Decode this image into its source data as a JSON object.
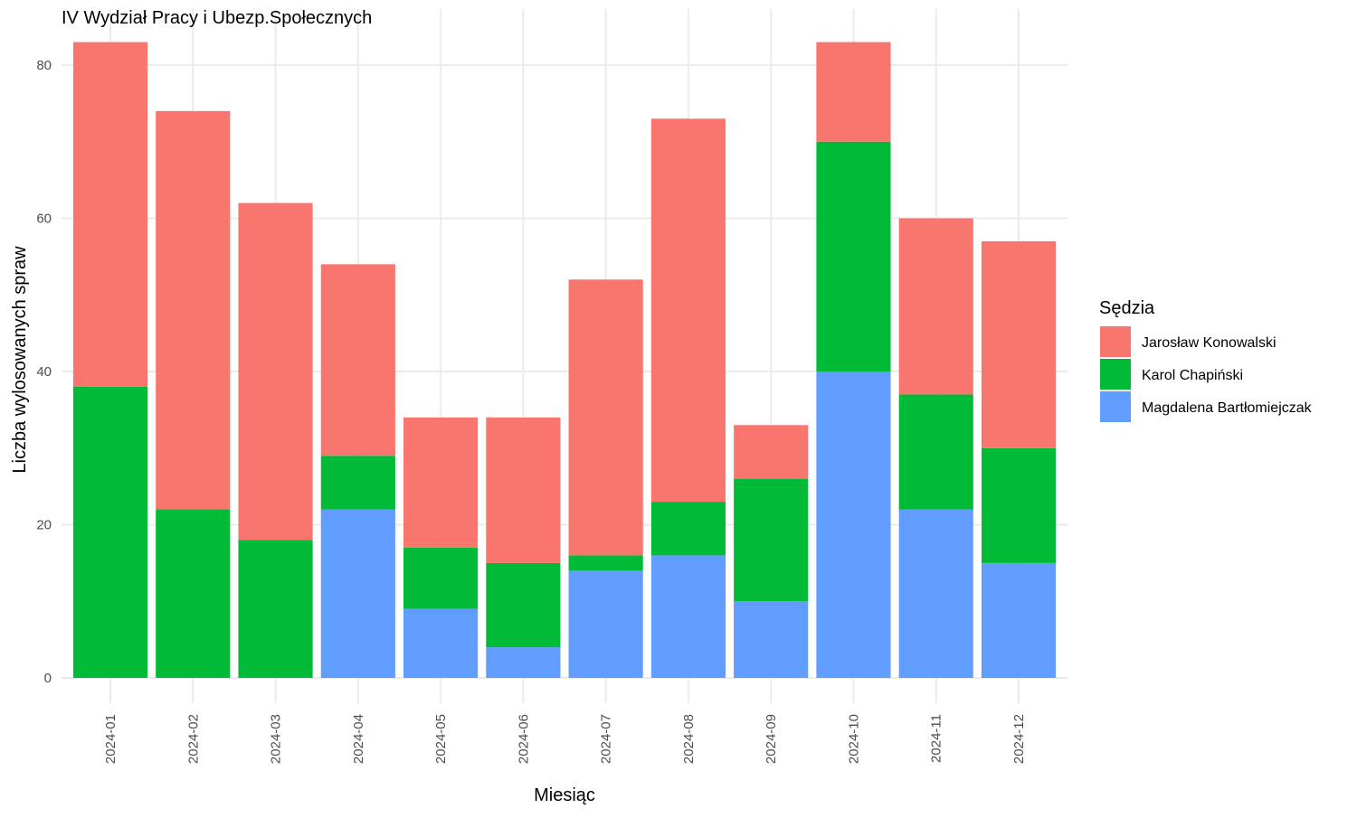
{
  "chart_data": {
    "type": "bar",
    "stacked": true,
    "title": "IV Wydział Pracy i Ubezp.Społecznych",
    "xlabel": "Miesiąc",
    "ylabel": "Liczba wylosowanych spraw",
    "ylim": [
      0,
      85
    ],
    "yticks": [
      0,
      20,
      40,
      60,
      80
    ],
    "grid": true,
    "legend_position": "right",
    "legend_title": "Sędzia",
    "categories": [
      "2024-01",
      "2024-02",
      "2024-03",
      "2024-04",
      "2024-05",
      "2024-06",
      "2024-07",
      "2024-08",
      "2024-09",
      "2024-10",
      "2024-11",
      "2024-12"
    ],
    "series": [
      {
        "name": "Magdalena Bartłomiejczak",
        "color": "#619CFF",
        "values": [
          0,
          0,
          0,
          22,
          9,
          4,
          14,
          16,
          10,
          40,
          22,
          15
        ]
      },
      {
        "name": "Karol Chapiński",
        "color": "#00BA38",
        "values": [
          38,
          22,
          18,
          7,
          8,
          11,
          2,
          7,
          16,
          30,
          15,
          15
        ]
      },
      {
        "name": "Jarosław Konowalski",
        "color": "#F8766D",
        "values": [
          45,
          52,
          44,
          25,
          17,
          19,
          36,
          50,
          7,
          13,
          23,
          27
        ]
      }
    ],
    "legend_order": [
      "Jarosław Konowalski",
      "Karol Chapiński",
      "Magdalena Bartłomiejczak"
    ]
  }
}
